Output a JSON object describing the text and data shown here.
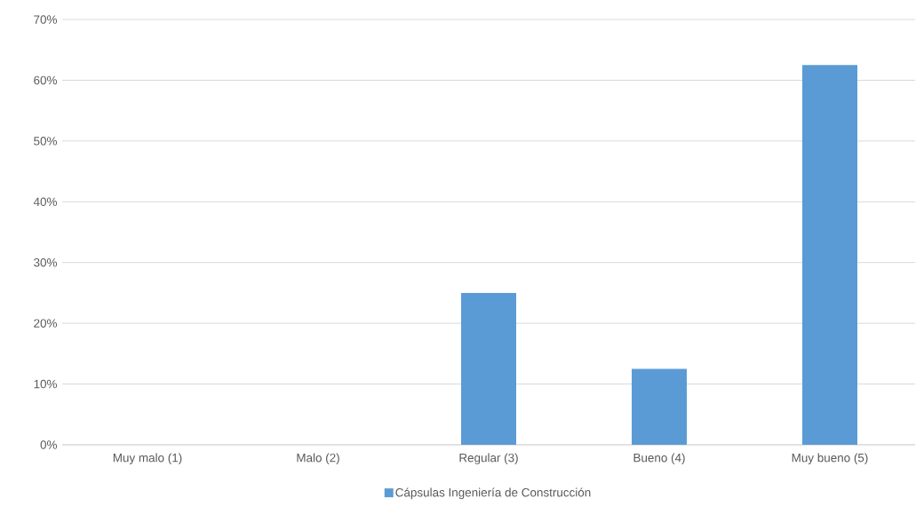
{
  "chart_data": {
    "type": "bar",
    "categories": [
      "Muy malo (1)",
      "Malo (2)",
      "Regular (3)",
      "Bueno (4)",
      "Muy bueno (5)"
    ],
    "series": [
      {
        "name": "Cápsulas Ingeniería de Construcción",
        "color": "#5b9bd5",
        "values": [
          0,
          0,
          25,
          12.5,
          62.5
        ]
      }
    ],
    "ylim": [
      0,
      70
    ],
    "yticks": [
      {
        "value": 0,
        "label": "0%"
      },
      {
        "value": 10,
        "label": "10%"
      },
      {
        "value": 20,
        "label": "20%"
      },
      {
        "value": 30,
        "label": "30%"
      },
      {
        "value": 40,
        "label": "40%"
      },
      {
        "value": 50,
        "label": "50%"
      },
      {
        "value": 60,
        "label": "60%"
      },
      {
        "value": 70,
        "label": "70%"
      }
    ],
    "grid": "y",
    "legend": "bottom"
  }
}
